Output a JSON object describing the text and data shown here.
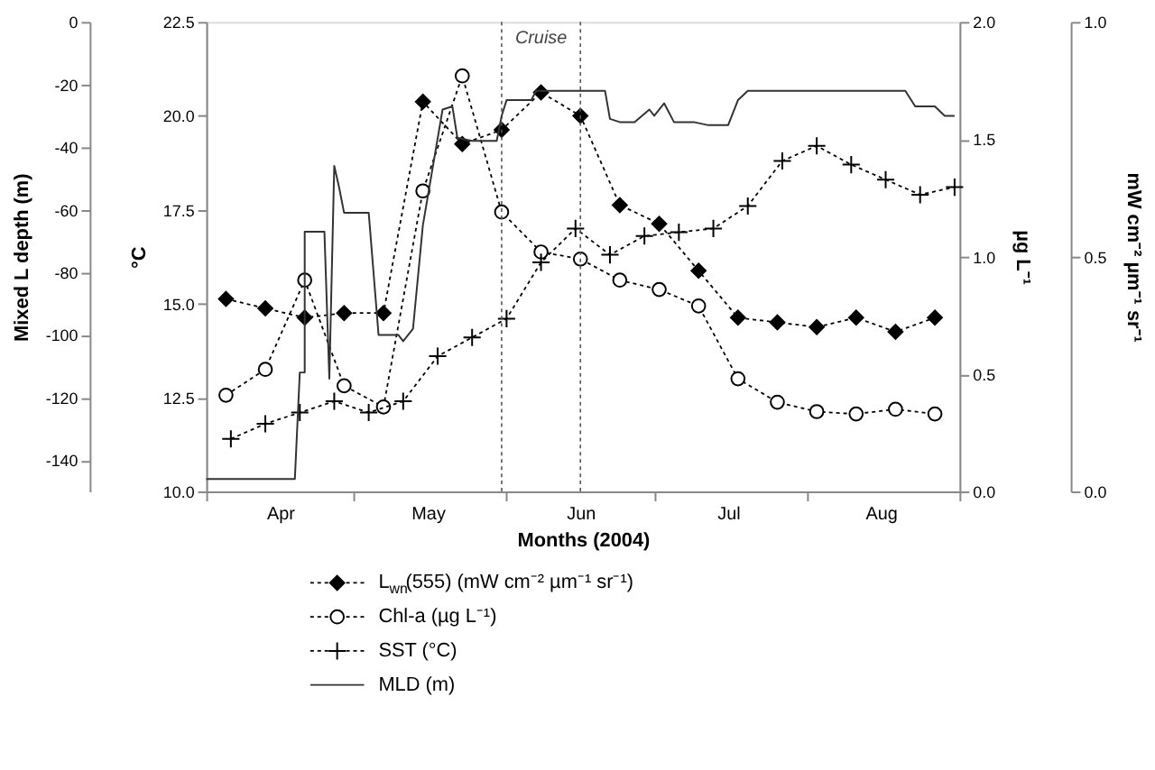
{
  "chart_data": [
    {
      "type": "line",
      "xlabel": "Months (2004)",
      "ylabel": "°C",
      "y2label": "µg L⁻¹",
      "y3label": "mW cm⁻² µm⁻¹ sr⁻¹",
      "xlim": [
        "2004-04-01",
        "2004-09-01"
      ],
      "xticks": [
        {
          "value": "2004-04-01",
          "label": null
        },
        {
          "value": "2004-04-16",
          "label": "Apr"
        },
        {
          "value": "2004-05-01",
          "label": null
        },
        {
          "value": "2004-05-16",
          "label": "May"
        },
        {
          "value": "2004-06-01",
          "label": null
        },
        {
          "value": "2004-06-16",
          "label": "Jun"
        },
        {
          "value": "2004-07-01",
          "label": null
        },
        {
          "value": "2004-07-16",
          "label": "Jul"
        },
        {
          "value": "2004-08-01",
          "label": null
        },
        {
          "value": "2004-08-16",
          "label": "Aug"
        },
        {
          "value": "2004-09-01",
          "label": null
        }
      ],
      "ylim": [
        10,
        22.5
      ],
      "yticks": [
        {
          "value": 10,
          "label": "10.0"
        },
        12.5,
        {
          "value": 15,
          "label": "15.0"
        },
        17.5,
        {
          "value": 20,
          "label": "20.0"
        },
        22.5
      ],
      "y2lim": [
        0,
        2
      ],
      "y2ticks": [
        {
          "value": 0,
          "label": "0.0"
        },
        0.5,
        {
          "value": 1,
          "label": "1.0"
        },
        1.5,
        {
          "value": 2,
          "label": "2.0"
        }
      ],
      "y3lim": [
        0,
        1
      ],
      "y3ticks": [
        {
          "value": 0,
          "label": "0.0"
        },
        0.5,
        {
          "value": 1,
          "label": "1.0"
        }
      ],
      "grid": false,
      "legend": "bottom left",
      "ref_lines": [
        {
          "axis": "x",
          "value": "2004-05-31",
          "label": null,
          "line_style": "dotted",
          "color": "#555555"
        },
        {
          "axis": "x",
          "value": "2004-06-16",
          "label": null,
          "line_style": "dotted",
          "color": "#555555"
        }
      ],
      "annotations": [
        "Cruise"
      ],
      "series": [
        {
          "name": "L$_{wn}$(555) (mW cm⁻² µm⁻¹ sr⁻¹)",
          "axis": "y3",
          "color": "#000000",
          "marker": "diamond",
          "line_style": "dotted",
          "x": [
            "2004-04-05",
            "2004-04-13",
            "2004-04-21",
            "2004-04-29",
            "2004-05-07",
            "2004-05-15",
            "2004-05-23",
            "2004-05-31",
            "2004-06-08",
            "2004-06-16",
            "2004-06-24",
            "2004-07-02",
            "2004-07-10",
            "2004-07-18",
            "2004-07-26",
            "2004-08-03",
            "2004-08-11",
            "2004-08-19",
            "2004-08-27"
          ],
          "values": [
            0.41,
            0.39,
            0.37,
            0.38,
            0.38,
            0.83,
            0.74,
            0.77,
            0.85,
            0.8,
            0.61,
            0.57,
            0.47,
            0.37,
            0.36,
            0.35,
            0.37,
            0.34,
            0.37
          ]
        },
        {
          "name": "Chl-a (µg L⁻¹)",
          "axis": "y2",
          "color": "#000000",
          "marker": "circle",
          "line_style": "dotted",
          "x": [
            "2004-04-05",
            "2004-04-13",
            "2004-04-21",
            "2004-04-29",
            "2004-05-07",
            "2004-05-15",
            "2004-05-23",
            "2004-05-31",
            "2004-06-08",
            "2004-06-16",
            "2004-06-24",
            "2004-07-02",
            "2004-07-10",
            "2004-07-18",
            "2004-07-26",
            "2004-08-03",
            "2004-08-11",
            "2004-08-19",
            "2004-08-27"
          ],
          "values": [
            0.41,
            0.52,
            0.9,
            0.45,
            0.36,
            1.28,
            1.77,
            1.19,
            1.02,
            0.99,
            0.9,
            0.86,
            0.79,
            0.48,
            0.38,
            0.34,
            0.33,
            0.35,
            0.33
          ]
        },
        {
          "name": "SST (°C)",
          "color": "#000000",
          "marker": "cross",
          "line_style": "dotted",
          "x": [
            "2004-04-06",
            "2004-04-13",
            "2004-04-20",
            "2004-04-27",
            "2004-05-04",
            "2004-05-11",
            "2004-05-18",
            "2004-05-25",
            "2004-06-01",
            "2004-06-08",
            "2004-06-15",
            "2004-06-22",
            "2004-06-29",
            "2004-07-06",
            "2004-07-13",
            "2004-07-20",
            "2004-07-27",
            "2004-08-03",
            "2004-08-10",
            "2004-08-17",
            "2004-08-24",
            "2004-08-31"
          ],
          "values": [
            11.4,
            11.8,
            12.1,
            12.4,
            12.1,
            12.4,
            13.6,
            14.1,
            14.6,
            16.1,
            17.0,
            16.3,
            16.8,
            16.9,
            17.0,
            17.6,
            18.8,
            19.2,
            18.7,
            18.3,
            17.9,
            18.1
          ]
        }
      ]
    },
    {
      "type": "line",
      "ylabel": "Mixed L depth (m)",
      "xlim": [
        "2004-04-01",
        "2004-09-01"
      ],
      "tick_labels": "y",
      "ylim": [
        -150,
        0
      ],
      "yticks": [
        0,
        -20,
        -40,
        -60,
        -80,
        -100,
        -120,
        -140
      ],
      "series": [
        {
          "name": "MLD (m)",
          "color": "#333333",
          "marker": "none",
          "line_style": "solid",
          "x": [
            "2004-04-01",
            "2004-04-19",
            "2004-04-20",
            "2004-04-21",
            "2004-04-21",
            "2004-04-25",
            "2004-04-26",
            "2004-04-27",
            "2004-04-28",
            "2004-04-29",
            "2004-05-04",
            "2004-05-06",
            "2004-05-10",
            "2004-05-11",
            "2004-05-13",
            "2004-05-15",
            "2004-05-19",
            "2004-05-21",
            "2004-05-22",
            "2004-05-25",
            "2004-05-30",
            "2004-05-31",
            "2004-06-01",
            "2004-06-06",
            "2004-06-07",
            "2004-06-21",
            "2004-06-22",
            "2004-06-24",
            "2004-06-27",
            "2004-06-30",
            "2004-07-01",
            "2004-07-03",
            "2004-07-05",
            "2004-07-09",
            "2004-07-12",
            "2004-07-16",
            "2004-07-18",
            "2004-07-20",
            "2004-08-21",
            "2004-08-23",
            "2004-08-27",
            "2004-08-29",
            "2004-08-31"
          ],
          "values": [
            -146,
            -146,
            -112,
            -112,
            -67,
            -67,
            -114,
            -46,
            -53,
            -61,
            -61,
            -100,
            -100,
            -102,
            -98,
            -65,
            -28,
            -27,
            -37,
            -38,
            -38,
            -30,
            -25,
            -25,
            -22,
            -22,
            -31,
            -32,
            -32,
            -28,
            -30,
            -26,
            -32,
            -32,
            -33,
            -33,
            -25,
            -22,
            -22,
            -27,
            -27,
            -30,
            -30
          ]
        }
      ]
    }
  ]
}
